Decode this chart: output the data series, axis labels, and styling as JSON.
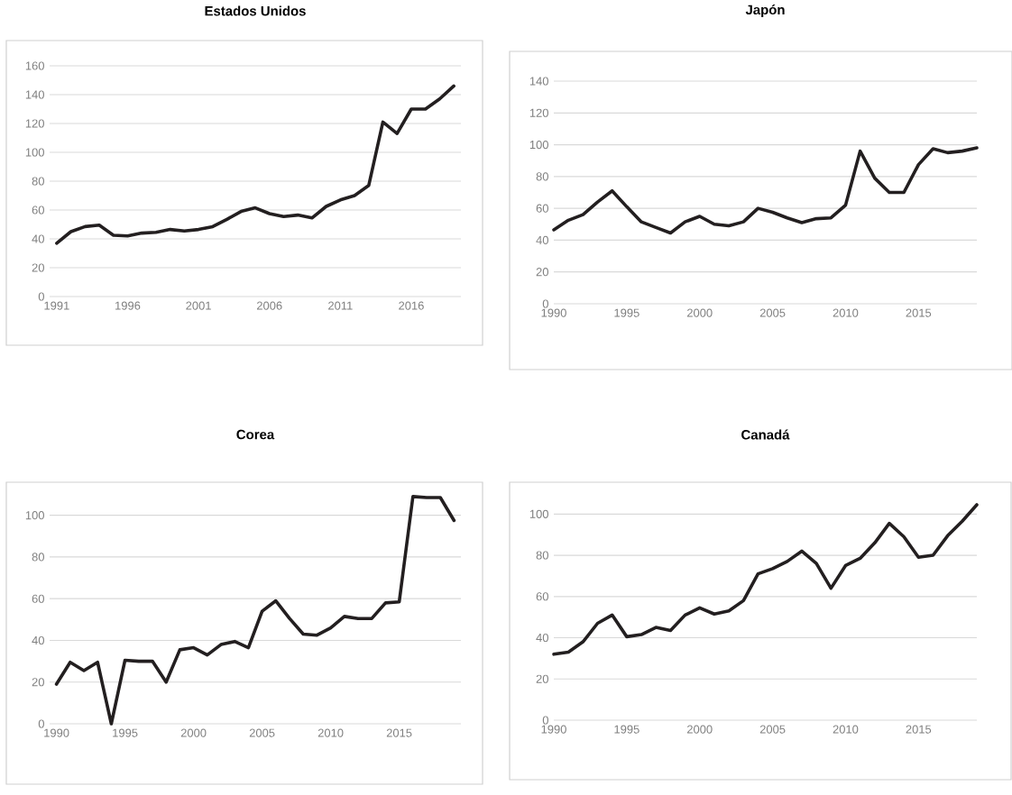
{
  "chart_data": [
    {
      "type": "line",
      "title": "Estados Unidos",
      "x": [
        1991,
        1992,
        1993,
        1994,
        1995,
        1996,
        1997,
        1998,
        1999,
        2000,
        2001,
        2002,
        2003,
        2004,
        2005,
        2006,
        2007,
        2008,
        2009,
        2010,
        2011,
        2012,
        2013,
        2014,
        2015,
        2016,
        2017,
        2018,
        2019
      ],
      "series": [
        {
          "color": "#231f20",
          "values": [
            37,
            45,
            48.5,
            49.5,
            42.5,
            42,
            44,
            44.5,
            46.5,
            45.5,
            46.5,
            48.5,
            53.5,
            59,
            61.5,
            57.5,
            55.5,
            56.5,
            54.5,
            62.5,
            67,
            70,
            77,
            121,
            113,
            130,
            130,
            137,
            146
          ]
        }
      ],
      "xlim": [
        1990.5,
        2019.5
      ],
      "ylim": [
        0,
        160
      ],
      "xticks": [
        1991,
        1996,
        2001,
        2006,
        2011,
        2016
      ],
      "yticks": [
        0,
        20,
        40,
        60,
        80,
        100,
        120,
        140,
        160
      ],
      "grid": "y"
    },
    {
      "type": "line",
      "title": "Japón",
      "x": [
        1990,
        1991,
        1992,
        1993,
        1994,
        1995,
        1996,
        1997,
        1998,
        1999,
        2000,
        2001,
        2002,
        2003,
        2004,
        2005,
        2006,
        2007,
        2008,
        2009,
        2010,
        2011,
        2012,
        2013,
        2014,
        2015,
        2016,
        2017,
        2018,
        2019
      ],
      "series": [
        {
          "color": "#231f20",
          "values": [
            46.5,
            52.5,
            56,
            64,
            71,
            61,
            51.5,
            48,
            44.5,
            51.5,
            55,
            50,
            49,
            51.5,
            60,
            57.5,
            54,
            51,
            53.5,
            54,
            62,
            96,
            79,
            70,
            70,
            87.5,
            97.5,
            95,
            96,
            98
          ]
        }
      ],
      "xlim": [
        1990,
        2019
      ],
      "ylim": [
        0,
        140
      ],
      "xticks": [
        1990,
        1995,
        2000,
        2005,
        2010,
        2015
      ],
      "yticks": [
        0,
        20,
        40,
        60,
        80,
        100,
        120,
        140
      ],
      "grid": "y"
    },
    {
      "type": "line",
      "title": "Corea",
      "x": [
        1990,
        1991,
        1992,
        1993,
        1994,
        1995,
        1996,
        1997,
        1998,
        1999,
        2000,
        2001,
        2002,
        2003,
        2004,
        2005,
        2006,
        2007,
        2008,
        2009,
        2010,
        2011,
        2012,
        2013,
        2014,
        2015,
        2016,
        2017,
        2018,
        2019
      ],
      "series": [
        {
          "color": "#231f20",
          "values": [
            19,
            29.5,
            25.5,
            29.5,
            0,
            30.5,
            30,
            30,
            20,
            35.5,
            36.5,
            33,
            38,
            39.5,
            36.5,
            54,
            59,
            50.5,
            43,
            42.5,
            46,
            51.5,
            50.5,
            50.5,
            58,
            58.5,
            109,
            108.5,
            108.5,
            97.5
          ]
        }
      ],
      "xlim": [
        1989.5,
        2019.5
      ],
      "ylim": [
        0,
        115
      ],
      "xticks": [
        1990,
        1995,
        2000,
        2005,
        2010,
        2015
      ],
      "yticks": [
        0,
        20,
        40,
        60,
        80,
        100
      ],
      "grid": "y"
    },
    {
      "type": "line",
      "title": "Canadá",
      "x": [
        1990,
        1991,
        1992,
        1993,
        1994,
        1995,
        1996,
        1997,
        1998,
        1999,
        2000,
        2001,
        2002,
        2003,
        2004,
        2005,
        2006,
        2007,
        2008,
        2009,
        2010,
        2011,
        2012,
        2013,
        2014,
        2015,
        2016,
        2017,
        2018,
        2019
      ],
      "series": [
        {
          "color": "#231f20",
          "values": [
            32,
            33,
            38,
            47,
            51,
            40.5,
            41.5,
            45,
            43.5,
            51,
            54.5,
            51.5,
            53,
            58,
            71,
            73.5,
            77,
            82,
            76,
            64,
            75,
            78.5,
            86,
            95.5,
            89,
            79,
            80,
            89.5,
            96.5,
            104.5
          ]
        }
      ],
      "xlim": [
        1990,
        2019
      ],
      "ylim": [
        0,
        115
      ],
      "xticks": [
        1990,
        1995,
        2000,
        2005,
        2010,
        2015
      ],
      "yticks": [
        0,
        20,
        40,
        60,
        80,
        100
      ],
      "grid": "y"
    }
  ]
}
